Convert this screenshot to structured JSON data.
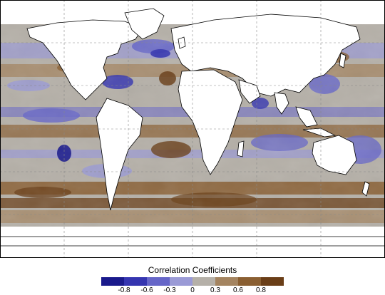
{
  "legend": {
    "title": "Correlation Coefficients",
    "colors": [
      "#1a1a8c",
      "#3535b0",
      "#6666c8",
      "#9a9ad6",
      "#b5b0a8",
      "#a48460",
      "#8a5f32",
      "#6a3e17"
    ],
    "tick_labels": [
      "-0.8",
      "-0.6",
      "-0.3",
      "0",
      "0.3",
      "0.6",
      "0.8"
    ]
  },
  "colors": {
    "land": "#ffffff",
    "coastline": "#000000",
    "grid": "#888888",
    "no_data": "#ffffff"
  },
  "map": {
    "projection": "equirectangular",
    "graticule": "dashed",
    "content": "global ocean correlation field"
  }
}
